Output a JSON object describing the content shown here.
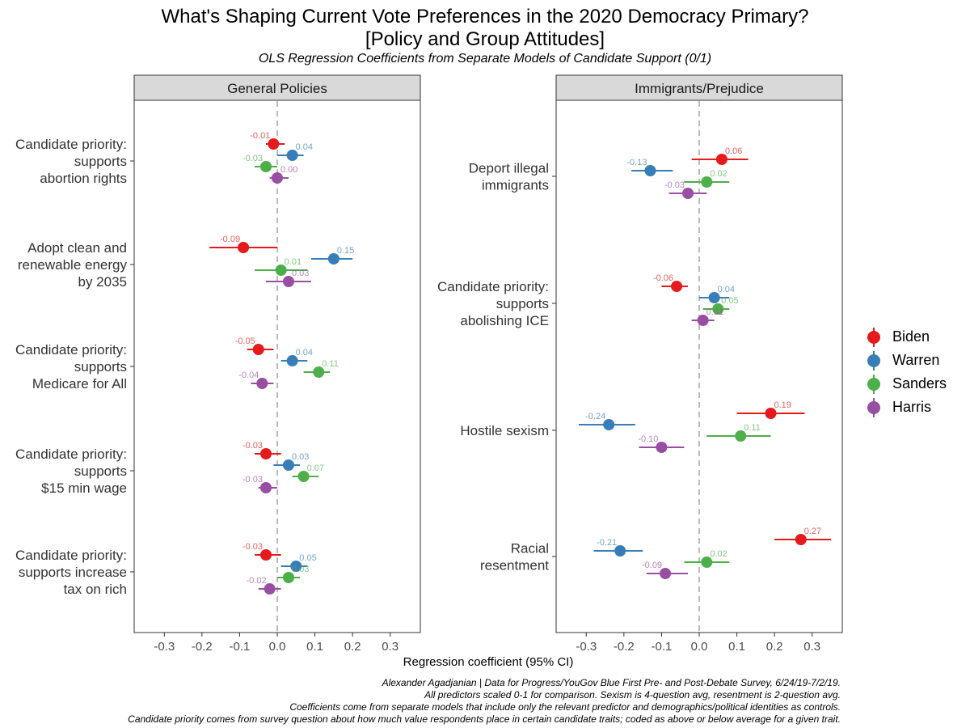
{
  "title_line1": "What's Shaping Current Vote Preferences in the 2020 Democracy Primary?",
  "title_line2": "[Policy and Group Attitudes]",
  "subtitle": "OLS Regression Coefficients from Separate Models of Candidate Support (0/1)",
  "legend": [
    {
      "name": "Biden",
      "color": "#e41a1c"
    },
    {
      "name": "Warren",
      "color": "#377eb8"
    },
    {
      "name": "Sanders",
      "color": "#4daf4a"
    },
    {
      "name": "Harris",
      "color": "#984ea3"
    }
  ],
  "caption": [
    "Alexander Agadjanian | Data for Progress/YouGov Blue First Pre- and Post-Debate Survey, 6/24/19-7/2/19.",
    "All predictors scaled 0-1 for comparison. Sexism is 4-question avg, resentment is 2-question avg.",
    "Coefficients come from separate models that include only the relevant predictor and demographics/political identities as controls.",
    "Candidate priority comes from survey question about how much value respondents place in certain candidate traits; coded as above or below average for a given trait."
  ],
  "chart_data": [
    {
      "type": "dot-and-whisker",
      "title": "General Policies",
      "xlabel": "Regression coefficient (95% CI)",
      "xlim": [
        -0.38,
        0.38
      ],
      "xticks": [
        -0.3,
        -0.2,
        -0.1,
        0.0,
        0.1,
        0.2,
        0.3
      ],
      "xtick_labels": [
        "-0.3",
        "-0.2",
        "-0.1",
        "0.0",
        "0.1",
        "0.2",
        "0.3"
      ],
      "reference_line": 0,
      "series_names": [
        "Biden",
        "Warren",
        "Sanders",
        "Harris"
      ],
      "categories": [
        {
          "label": [
            "Candidate priority:",
            "supports",
            "abortion rights"
          ],
          "estimates": [
            {
              "series": "Biden",
              "value": -0.01,
              "label": "-0.01",
              "ci": [
                -0.03,
                0.02
              ]
            },
            {
              "series": "Warren",
              "value": 0.04,
              "label": "0.04",
              "ci": [
                0.0,
                0.07
              ]
            },
            {
              "series": "Sanders",
              "value": -0.03,
              "label": "-0.03",
              "ci": [
                -0.06,
                0.0
              ]
            },
            {
              "series": "Harris",
              "value": 0.0,
              "label": "0.00",
              "ci": [
                -0.02,
                0.03
              ]
            }
          ]
        },
        {
          "label": [
            "Adopt clean and",
            "renewable energy",
            "by 2035"
          ],
          "estimates": [
            {
              "series": "Biden",
              "value": -0.09,
              "label": "-0.09",
              "ci": [
                -0.18,
                0.0
              ]
            },
            {
              "series": "Warren",
              "value": 0.15,
              "label": "0.15",
              "ci": [
                0.09,
                0.2
              ]
            },
            {
              "series": "Sanders",
              "value": 0.01,
              "label": "0.01",
              "ci": [
                -0.06,
                0.08
              ]
            },
            {
              "series": "Harris",
              "value": 0.03,
              "label": "0.03",
              "ci": [
                -0.03,
                0.09
              ]
            }
          ]
        },
        {
          "label": [
            "Candidate priority:",
            "supports",
            "Medicare for All"
          ],
          "estimates": [
            {
              "series": "Biden",
              "value": -0.05,
              "label": "-0.05",
              "ci": [
                -0.08,
                -0.01
              ]
            },
            {
              "series": "Warren",
              "value": 0.04,
              "label": "0.04",
              "ci": [
                0.01,
                0.08
              ]
            },
            {
              "series": "Sanders",
              "value": 0.11,
              "label": "0.11",
              "ci": [
                0.07,
                0.14
              ]
            },
            {
              "series": "Harris",
              "value": -0.04,
              "label": "-0.04",
              "ci": [
                -0.07,
                -0.01
              ]
            }
          ]
        },
        {
          "label": [
            "Candidate priority:",
            "supports",
            "$15 min wage"
          ],
          "estimates": [
            {
              "series": "Biden",
              "value": -0.03,
              "label": "-0.03",
              "ci": [
                -0.06,
                0.01
              ]
            },
            {
              "series": "Warren",
              "value": 0.03,
              "label": "0.03",
              "ci": [
                -0.01,
                0.06
              ]
            },
            {
              "series": "Sanders",
              "value": 0.07,
              "label": "0.07",
              "ci": [
                0.04,
                0.11
              ]
            },
            {
              "series": "Harris",
              "value": -0.03,
              "label": "-0.03",
              "ci": [
                -0.05,
                0.0
              ]
            }
          ]
        },
        {
          "label": [
            "Candidate priority:",
            "supports increase",
            "tax on rich"
          ],
          "estimates": [
            {
              "series": "Biden",
              "value": -0.03,
              "label": "-0.03",
              "ci": [
                -0.06,
                0.01
              ]
            },
            {
              "series": "Warren",
              "value": 0.05,
              "label": "0.05",
              "ci": [
                0.01,
                0.08
              ]
            },
            {
              "series": "Sanders",
              "value": 0.03,
              "label": "0.03",
              "ci": [
                0.0,
                0.06
              ]
            },
            {
              "series": "Harris",
              "value": -0.02,
              "label": "-0.02",
              "ci": [
                -0.05,
                0.01
              ]
            }
          ]
        }
      ]
    },
    {
      "type": "dot-and-whisker",
      "title": "Immigrants/Prejudice",
      "xlabel": "Regression coefficient (95% CI)",
      "xlim": [
        -0.38,
        0.38
      ],
      "xticks": [
        -0.3,
        -0.2,
        -0.1,
        0.0,
        0.1,
        0.2,
        0.3
      ],
      "xtick_labels": [
        "-0.3",
        "-0.2",
        "-0.1",
        "0.0",
        "0.1",
        "0.2",
        "0.3"
      ],
      "reference_line": 0,
      "series_names": [
        "Biden",
        "Warren",
        "Sanders",
        "Harris"
      ],
      "categories": [
        {
          "label": [
            "Deport illegal",
            "immigrants"
          ],
          "estimates": [
            {
              "series": "Biden",
              "value": 0.06,
              "label": "0.06",
              "ci": [
                -0.02,
                0.13
              ]
            },
            {
              "series": "Warren",
              "value": -0.13,
              "label": "-0.13",
              "ci": [
                -0.18,
                -0.07
              ]
            },
            {
              "series": "Sanders",
              "value": 0.02,
              "label": "0.02",
              "ci": [
                -0.04,
                0.08
              ]
            },
            {
              "series": "Harris",
              "value": -0.03,
              "label": "-0.03",
              "ci": [
                -0.08,
                0.02
              ]
            }
          ]
        },
        {
          "label": [
            "Candidate priority:",
            "supports",
            "abolishing ICE"
          ],
          "estimates": [
            {
              "series": "Biden",
              "value": -0.06,
              "label": "-0.06",
              "ci": [
                -0.1,
                -0.03
              ]
            },
            {
              "series": "Warren",
              "value": 0.04,
              "label": "0.04",
              "ci": [
                0.0,
                0.08
              ]
            },
            {
              "series": "Sanders",
              "value": 0.05,
              "label": "0.05",
              "ci": [
                0.01,
                0.08
              ]
            },
            {
              "series": "Harris",
              "value": 0.01,
              "label": "0.01",
              "ci": [
                -0.02,
                0.04
              ]
            }
          ]
        },
        {
          "label": [
            "Hostile sexism"
          ],
          "estimates": [
            {
              "series": "Biden",
              "value": 0.19,
              "label": "0.19",
              "ci": [
                0.1,
                0.28
              ]
            },
            {
              "series": "Warren",
              "value": -0.24,
              "label": "-0.24",
              "ci": [
                -0.32,
                -0.17
              ]
            },
            {
              "series": "Sanders",
              "value": 0.11,
              "label": "0.11",
              "ci": [
                0.02,
                0.19
              ]
            },
            {
              "series": "Harris",
              "value": -0.1,
              "label": "-0.10",
              "ci": [
                -0.16,
                -0.04
              ]
            }
          ]
        },
        {
          "label": [
            "Racial",
            "resentment"
          ],
          "estimates": [
            {
              "series": "Biden",
              "value": 0.27,
              "label": "0.27",
              "ci": [
                0.2,
                0.35
              ]
            },
            {
              "series": "Warren",
              "value": -0.21,
              "label": "-0.21",
              "ci": [
                -0.28,
                -0.15
              ]
            },
            {
              "series": "Sanders",
              "value": 0.02,
              "label": "0.02",
              "ci": [
                -0.04,
                0.08
              ]
            },
            {
              "series": "Harris",
              "value": -0.09,
              "label": "-0.09",
              "ci": [
                -0.14,
                -0.03
              ]
            }
          ]
        }
      ]
    }
  ]
}
